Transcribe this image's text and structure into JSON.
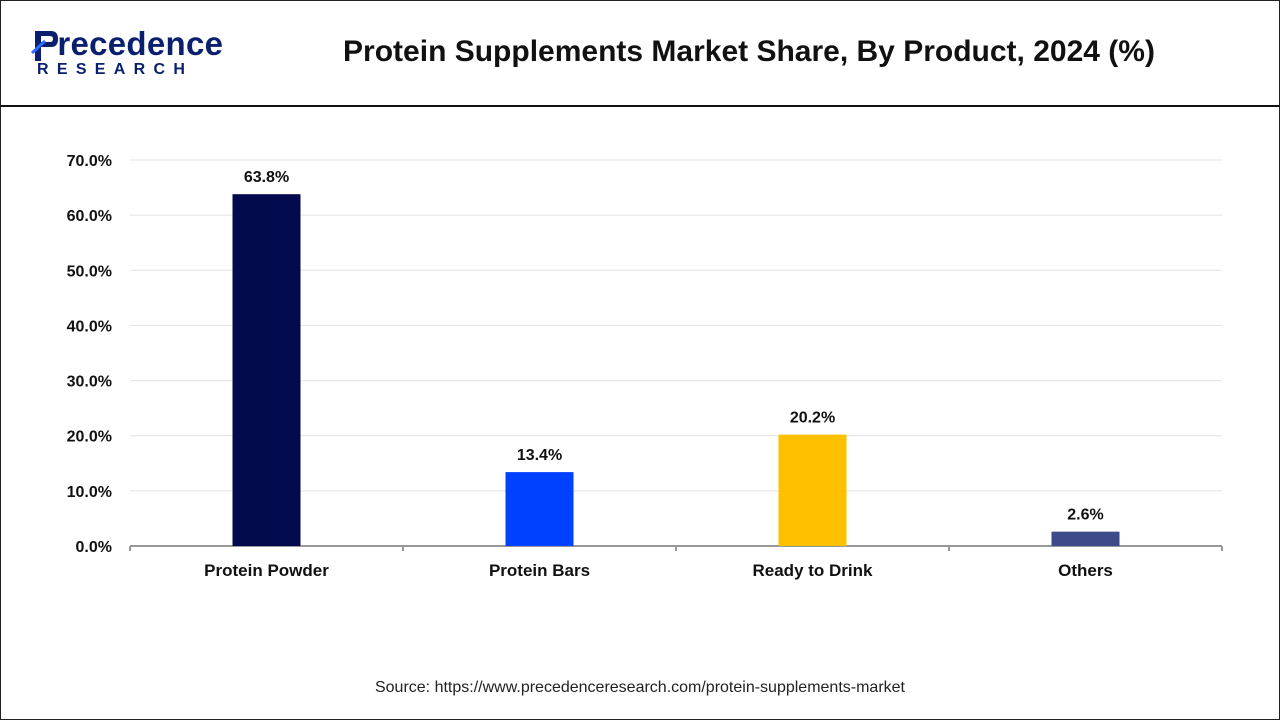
{
  "brand": {
    "name_first_letter": "P",
    "name_rest": "recedence",
    "subtitle": "RESEARCH"
  },
  "chart_title": "Protein Supplements Market Share, By Product, 2024 (%)",
  "source": "Source: https://www.precedenceresearch.com/protein-supplements-market",
  "colors": {
    "protein_powder": "#020a4d",
    "protein_bars": "#0040ff",
    "ready_to_drink": "#ffc000",
    "others": "#3f4a8a",
    "grid": "#e3e3e3",
    "axis": "#999999"
  },
  "chart_data": {
    "type": "bar",
    "title": "Protein Supplements Market Share, By Product, 2024 (%)",
    "categories": [
      "Protein Powder",
      "Protein Bars",
      "Ready to Drink",
      "Others"
    ],
    "values": [
      63.8,
      13.4,
      20.2,
      2.6
    ],
    "data_labels": [
      "63.8%",
      "13.4%",
      "20.2%",
      "2.6%"
    ],
    "bar_colors": [
      "#020a4d",
      "#0040ff",
      "#ffc000",
      "#3f4a8a"
    ],
    "ylim": [
      0,
      70
    ],
    "yticks": [
      0,
      10,
      20,
      30,
      40,
      50,
      60,
      70
    ],
    "ytick_labels": [
      "0.0%",
      "10.0%",
      "20.0%",
      "30.0%",
      "40.0%",
      "50.0%",
      "60.0%",
      "70.0%"
    ],
    "xlabel": "",
    "ylabel": "",
    "grid": true,
    "legend": "none"
  }
}
